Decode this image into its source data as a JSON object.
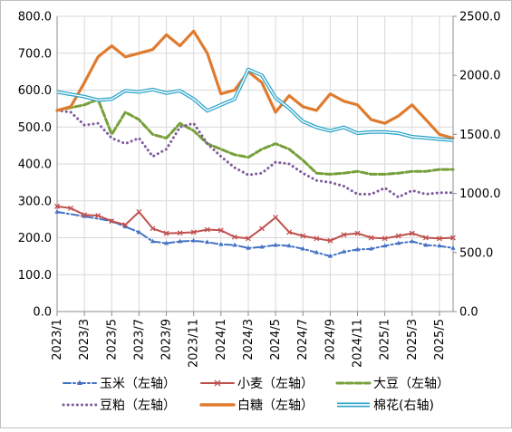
{
  "chart_data": {
    "type": "line",
    "title": "",
    "x_tick_labels": [
      "2023/1",
      "2023/3",
      "2023/5",
      "2023/7",
      "2023/9",
      "2023/11",
      "2024/1",
      "2024/3",
      "2024/5",
      "2024/7",
      "2024/9",
      "2024/11",
      "2025/1",
      "2025/3",
      "2025/5"
    ],
    "x_range": [
      "2023/1",
      "2025/6"
    ],
    "y_left": {
      "range": [
        0,
        800
      ],
      "ticks": [
        "0.0",
        "100.0",
        "200.0",
        "300.0",
        "400.0",
        "500.0",
        "600.0",
        "700.0",
        "800.0"
      ]
    },
    "y_right": {
      "range": [
        0,
        2500
      ],
      "ticks": [
        "0.0",
        "500.0",
        "1000.0",
        "1500.0",
        "2000.0",
        "2500.0"
      ]
    },
    "grid": true,
    "legend_position": "bottom",
    "series": [
      {
        "name": "玉米（左轴）",
        "axis": "left",
        "color": "#4472C4",
        "style": "dash-dot-marker",
        "x": [
          "2023/1",
          "2023/3",
          "2023/5",
          "2023/6",
          "2023/7",
          "2023/8",
          "2023/9",
          "2023/10",
          "2023/11",
          "2023/12",
          "2024/1",
          "2024/2",
          "2024/3",
          "2024/4",
          "2024/5",
          "2024/6",
          "2024/7",
          "2024/8",
          "2024/9",
          "2024/10",
          "2024/11",
          "2024/12",
          "2025/1",
          "2025/2",
          "2025/3",
          "2025/4",
          "2025/5",
          "2025/6"
        ],
        "values": [
          270,
          258,
          245,
          230,
          215,
          190,
          185,
          190,
          192,
          188,
          182,
          180,
          172,
          175,
          180,
          178,
          170,
          160,
          150,
          162,
          168,
          170,
          178,
          185,
          190,
          180,
          178,
          172
        ]
      },
      {
        "name": "小麦（左轴）",
        "axis": "left",
        "color": "#C0504D",
        "style": "x-marker",
        "x": [
          "2023/1",
          "2023/2",
          "2023/3",
          "2023/4",
          "2023/5",
          "2023/6",
          "2023/7",
          "2023/8",
          "2023/9",
          "2023/10",
          "2023/11",
          "2023/12",
          "2024/1",
          "2024/2",
          "2024/3",
          "2024/4",
          "2024/5",
          "2024/6",
          "2024/7",
          "2024/8",
          "2024/9",
          "2024/10",
          "2024/11",
          "2024/12",
          "2025/1",
          "2025/2",
          "2025/3",
          "2025/4",
          "2025/5",
          "2025/6"
        ],
        "values": [
          285,
          280,
          262,
          260,
          245,
          235,
          270,
          225,
          212,
          213,
          215,
          222,
          220,
          202,
          198,
          225,
          255,
          215,
          205,
          198,
          192,
          208,
          212,
          200,
          198,
          205,
          212,
          200,
          198,
          200
        ]
      },
      {
        "name": "大豆（左轴）",
        "axis": "left",
        "color": "#77A03A",
        "style": "dashed",
        "x": [
          "2023/1",
          "2023/3",
          "2023/4",
          "2023/5",
          "2023/6",
          "2023/7",
          "2023/8",
          "2023/9",
          "2023/10",
          "2023/11",
          "2023/12",
          "2024/1",
          "2024/2",
          "2024/3",
          "2024/4",
          "2024/5",
          "2024/6",
          "2024/7",
          "2024/8",
          "2024/9",
          "2024/10",
          "2024/11",
          "2024/12",
          "2025/1",
          "2025/2",
          "2025/3",
          "2025/4",
          "2025/5",
          "2025/6"
        ],
        "values": [
          545,
          560,
          575,
          480,
          540,
          520,
          480,
          470,
          510,
          490,
          455,
          440,
          425,
          418,
          440,
          455,
          440,
          410,
          375,
          372,
          375,
          380,
          372,
          372,
          375,
          380,
          380,
          385,
          385
        ]
      },
      {
        "name": "豆粕（左轴）",
        "axis": "left",
        "color": "#7F5A9C",
        "style": "dotted",
        "x": [
          "2023/1",
          "2023/2",
          "2023/3",
          "2023/4",
          "2023/5",
          "2023/6",
          "2023/7",
          "2023/8",
          "2023/9",
          "2023/10",
          "2023/11",
          "2023/12",
          "2024/1",
          "2024/2",
          "2024/3",
          "2024/4",
          "2024/5",
          "2024/6",
          "2024/7",
          "2024/8",
          "2024/9",
          "2024/10",
          "2024/11",
          "2024/12",
          "2025/1",
          "2025/2",
          "2025/3",
          "2025/4",
          "2025/5",
          "2025/6"
        ],
        "values": [
          545,
          540,
          505,
          510,
          470,
          455,
          470,
          420,
          440,
          500,
          510,
          455,
          420,
          390,
          370,
          375,
          405,
          400,
          375,
          355,
          350,
          340,
          318,
          318,
          335,
          310,
          328,
          318,
          322,
          322
        ]
      },
      {
        "name": "白糖（左轴）",
        "axis": "left",
        "color": "#E07B2E",
        "style": "solid-thick",
        "x": [
          "2023/1",
          "2023/2",
          "2023/3",
          "2023/4",
          "2023/5",
          "2023/6",
          "2023/7",
          "2023/8",
          "2023/9",
          "2023/10",
          "2023/11",
          "2023/12",
          "2024/1",
          "2024/2",
          "2024/3",
          "2024/4",
          "2024/5",
          "2024/6",
          "2024/7",
          "2024/8",
          "2024/9",
          "2024/10",
          "2024/11",
          "2024/12",
          "2025/1",
          "2025/2",
          "2025/3",
          "2025/4",
          "2025/5",
          "2025/6"
        ],
        "values": [
          545,
          555,
          620,
          690,
          720,
          690,
          700,
          710,
          750,
          720,
          760,
          700,
          590,
          600,
          650,
          620,
          540,
          585,
          555,
          545,
          590,
          570,
          560,
          520,
          510,
          530,
          560,
          520,
          480,
          470
        ]
      },
      {
        "name": "棉花(右轴)",
        "axis": "right",
        "color": "#2EA5C9",
        "style": "double-line",
        "x": [
          "2023/1",
          "2023/2",
          "2023/3",
          "2023/4",
          "2023/5",
          "2023/6",
          "2023/7",
          "2023/8",
          "2023/9",
          "2023/10",
          "2023/11",
          "2023/12",
          "2024/1",
          "2024/2",
          "2024/3",
          "2024/4",
          "2024/5",
          "2024/6",
          "2024/7",
          "2024/8",
          "2024/9",
          "2024/10",
          "2024/11",
          "2024/12",
          "2025/1",
          "2025/2",
          "2025/3",
          "2025/4",
          "2025/5",
          "2025/6"
        ],
        "values": [
          1860,
          1840,
          1820,
          1790,
          1800,
          1870,
          1860,
          1880,
          1850,
          1870,
          1800,
          1700,
          1750,
          1800,
          2050,
          2000,
          1810,
          1720,
          1610,
          1560,
          1530,
          1560,
          1510,
          1520,
          1520,
          1510,
          1480,
          1470,
          1460,
          1450
        ]
      }
    ]
  }
}
